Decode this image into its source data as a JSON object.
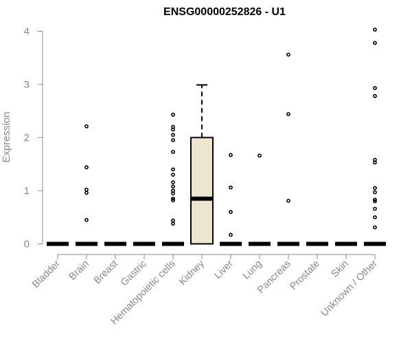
{
  "chart_data": {
    "type": "box",
    "title": "ENSG00000252826 - U1",
    "xlabel": "",
    "ylabel": "Expression",
    "ylim": [
      0,
      4.05
    ],
    "yticks": [
      0,
      1,
      2,
      3,
      4
    ],
    "grid": false,
    "box_fill": "#ede6cf",
    "categories": [
      "Bladder",
      "Brain",
      "Breast",
      "Gastric",
      "Hematopoietic cells",
      "Kidney",
      "Liver",
      "Lung",
      "Pancreas",
      "Prostate",
      "Skin",
      "Unknown / Other"
    ],
    "boxes": [
      {
        "q1": 0,
        "median": 0,
        "q3": 0,
        "whisker_low": 0,
        "whisker_high": 0,
        "outliers": []
      },
      {
        "q1": 0,
        "median": 0,
        "q3": 0,
        "whisker_low": 0,
        "whisker_high": 0,
        "outliers": [
          2.21,
          1.44,
          1.02,
          0.96,
          0.45
        ]
      },
      {
        "q1": 0,
        "median": 0,
        "q3": 0,
        "whisker_low": 0,
        "whisker_high": 0,
        "outliers": []
      },
      {
        "q1": 0,
        "median": 0,
        "q3": 0,
        "whisker_low": 0,
        "whisker_high": 0,
        "outliers": []
      },
      {
        "q1": 0,
        "median": 0,
        "q3": 0,
        "whisker_low": 0,
        "whisker_high": 0,
        "outliers": [
          2.43,
          2.2,
          2.15,
          2.05,
          1.95,
          1.73,
          1.4,
          1.3,
          1.16,
          1.08,
          1.0,
          0.95,
          0.85,
          0.82,
          0.44,
          0.38
        ]
      },
      {
        "q1": 0,
        "median": 0.85,
        "q3": 2.0,
        "whisker_low": 0,
        "whisker_high": 2.99,
        "outliers": []
      },
      {
        "q1": 0,
        "median": 0,
        "q3": 0,
        "whisker_low": 0,
        "whisker_high": 0,
        "outliers": [
          1.67,
          1.06,
          0.6,
          0.17
        ]
      },
      {
        "q1": 0,
        "median": 0,
        "q3": 0,
        "whisker_low": 0,
        "whisker_high": 0,
        "outliers": [
          1.66
        ]
      },
      {
        "q1": 0,
        "median": 0,
        "q3": 0,
        "whisker_low": 0,
        "whisker_high": 0,
        "outliers": [
          3.56,
          2.44,
          0.81
        ]
      },
      {
        "q1": 0,
        "median": 0,
        "q3": 0,
        "whisker_low": 0,
        "whisker_high": 0,
        "outliers": []
      },
      {
        "q1": 0,
        "median": 0,
        "q3": 0,
        "whisker_low": 0,
        "whisker_high": 0,
        "outliers": []
      },
      {
        "q1": 0,
        "median": 0,
        "q3": 0,
        "whisker_low": 0,
        "whisker_high": 0,
        "outliers": [
          4.03,
          3.78,
          2.93,
          2.78,
          1.58,
          1.53,
          1.05,
          0.97,
          0.83,
          0.8,
          0.66,
          0.5,
          0.31
        ]
      }
    ]
  }
}
